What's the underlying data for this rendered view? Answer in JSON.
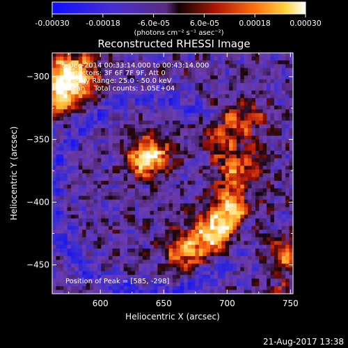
{
  "colorbar": {
    "ticks": [
      "-0.00030",
      "-0.00018",
      "-6.0e-05",
      "6.0e-05",
      "0.00018",
      "0.00030"
    ],
    "units": "(photons cm⁻² s⁻¹ asec⁻²)"
  },
  "footer": {
    "timestamp": "21-Aug-2017 13:38"
  },
  "chart_data": {
    "type": "heatmap",
    "title": "Reconstructed RHESSI Image",
    "xlabel": "Heliocentric X (arcsec)",
    "ylabel": "Heliocentric Y (arcsec)",
    "xlim": [
      562,
      752
    ],
    "ylim": [
      -473,
      -281
    ],
    "xticks": [
      600,
      650,
      700,
      750
    ],
    "yticks": [
      -300,
      -350,
      -400,
      -450
    ],
    "color_range": [
      -0.0003,
      0.0003
    ],
    "colormap": "blue-purple-red-yellow-white (RHESSI color table)",
    "annotations": {
      "time_range": "6-Dec-2014 00:33:14.000 to 00:43:14.000",
      "detectors": "Detectors: 3F 6F 7F 9F, Att 0",
      "energy_range": "Energy Range: 25.0 - 50.0 keV",
      "method": "Clean    Total counts: 1.05E+04",
      "peak": "Position of Peak = [585, -298]"
    },
    "bright_sources": [
      {
        "name": "north-west corner source",
        "x": 585,
        "y": -298
      },
      {
        "name": "central compact source",
        "x": 642,
        "y": -362
      },
      {
        "name": "eastern arc source",
        "x": 690,
        "y": -390
      },
      {
        "name": "south-east edge source",
        "x": 748,
        "y": -440
      }
    ]
  },
  "colors": {
    "background": "#000000",
    "text": "#ffffff",
    "colormap_stops": [
      "#0b0bff",
      "#3d2fd6",
      "#7a3fb8",
      "#5a2a88",
      "#1a0608",
      "#c41a08",
      "#ff7a10",
      "#ffd24a",
      "#ffffff"
    ]
  }
}
